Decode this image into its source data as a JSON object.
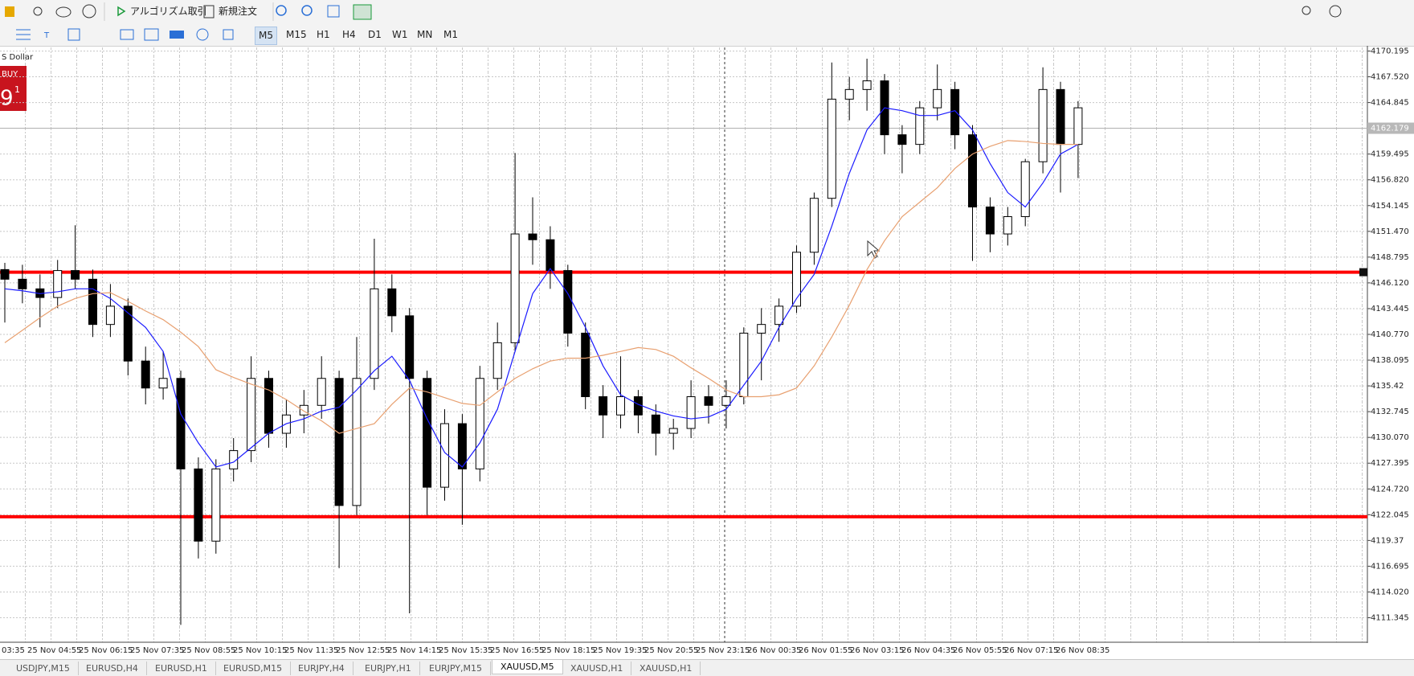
{
  "toolbar": {
    "buttons": [
      "アルゴリズム取引",
      "新規注文"
    ],
    "timeframes": [
      "M5",
      "M15",
      "H1",
      "H4",
      "D1",
      "W1",
      "MN",
      "M1"
    ],
    "active_timeframe": "M5"
  },
  "symbol_label": "S Dollar",
  "trade_panel": {
    "label": "BUY",
    "price": "9",
    "superscript": "1"
  },
  "chart_data": {
    "type": "candlestick",
    "x_labels": [
      "03:35",
      "25 Nov 04:55",
      "25 Nov 06:15",
      "25 Nov 07:35",
      "25 Nov 08:55",
      "25 Nov 10:15",
      "25 Nov 11:35",
      "25 Nov 12:55",
      "25 Nov 14:15",
      "25 Nov 15:35",
      "25 Nov 16:55",
      "25 Nov 18:15",
      "25 Nov 19:35",
      "25 Nov 20:55",
      "25 Nov 23:15",
      "26 Nov 00:35",
      "26 Nov 01:55",
      "26 Nov 03:15",
      "26 Nov 04:35",
      "26 Nov 05:55",
      "26 Nov 07:15",
      "26 Nov 08:35"
    ],
    "ylim": [
      4108.8,
      4170.57
    ],
    "yticks": [
      4170.195,
      {
        "value": 4167.52,
        "label": "4167.520"
      },
      4164.845,
      4159.495,
      {
        "value": 4156.82,
        "label": "4156.820"
      },
      4154.145,
      {
        "value": 4151.47,
        "label": "4151.470"
      },
      4148.795,
      {
        "value": 4146.12,
        "label": "4146.120"
      },
      4143.445,
      {
        "value": 4140.77,
        "label": "4140.770"
      },
      4138.095,
      4135.42,
      4132.745,
      {
        "value": 4130.07,
        "label": "4130.070"
      },
      4127.395,
      {
        "value": 4124.72,
        "label": "4124.720"
      },
      4122.045,
      4119.37,
      4116.695,
      {
        "value": 4114.02,
        "label": "4114.020"
      },
      4111.345
    ],
    "grid": true,
    "open": [
      4147.5,
      4146.5,
      4145.5,
      4144.6,
      4147.4,
      4146.5,
      4141.8,
      4143.7,
      4138.0,
      4135.2,
      4136.2,
      4126.8,
      4119.3,
      4126.8,
      4128.7,
      4136.2,
      4130.5,
      4132.4,
      4133.4,
      4136.2,
      4123.0,
      4136.2,
      4145.5,
      4142.7,
      4136.2,
      4124.9,
      4131.5,
      4126.8,
      4136.2,
      4139.9,
      4151.2,
      4150.6,
      4147.4,
      4140.9,
      4134.3,
      4132.4,
      4134.3,
      4132.4,
      4130.5,
      4131.0,
      4134.3,
      4133.4,
      4134.3,
      4140.9,
      4141.8,
      4143.7,
      4149.3,
      4154.9,
      4165.2,
      4166.2,
      4167.1,
      4161.5,
      4160.5,
      4164.3,
      4166.2,
      4161.5,
      4154.0,
      4151.2,
      4153.0,
      4158.7,
      4166.2,
      4160.5
    ],
    "high": [
      4148.2,
      4148.0,
      4147.0,
      4148.5,
      4152.1,
      4147.5,
      4146.0,
      4144.5,
      4139.5,
      4139.0,
      4137.0,
      4128.0,
      4127.8,
      4130.0,
      4138.5,
      4137.0,
      4134.0,
      4135.0,
      4138.5,
      4137.0,
      4140.5,
      4150.7,
      4147.0,
      4143.5,
      4137.0,
      4133.0,
      4132.5,
      4137.5,
      4142.0,
      4159.6,
      4155.0,
      4152.0,
      4148.0,
      4142.0,
      4135.5,
      4138.5,
      4135.0,
      4133.5,
      4132.0,
      4136.0,
      4135.5,
      4136.0,
      4141.5,
      4143.5,
      4144.5,
      4150.0,
      4155.5,
      4169.0,
      4167.5,
      4169.4,
      4167.8,
      4162.5,
      4165.0,
      4168.8,
      4167.0,
      4162.5,
      4155.0,
      4154.0,
      4159.0,
      4168.5,
      4167.0,
      4165.0
    ],
    "low": [
      4142.0,
      4144.0,
      4141.5,
      4143.5,
      4145.5,
      4140.5,
      4140.5,
      4136.5,
      4133.5,
      4134.0,
      4110.6,
      4117.5,
      4118.0,
      4125.5,
      4127.5,
      4129.0,
      4129.0,
      4130.5,
      4132.0,
      4116.5,
      4122.0,
      4135.0,
      4141.0,
      4111.8,
      4122.0,
      4123.5,
      4121.0,
      4125.5,
      4135.0,
      4139.0,
      4148.0,
      4145.5,
      4139.5,
      4133.0,
      4130.0,
      4131.0,
      4130.5,
      4128.2,
      4128.8,
      4130.0,
      4131.5,
      4131.0,
      4133.5,
      4136.0,
      4140.0,
      4143.0,
      4148.0,
      4154.0,
      4163.0,
      4164.0,
      4159.5,
      4157.5,
      4159.5,
      4163.0,
      4160.0,
      4148.4,
      4149.3,
      4150.0,
      4152.0,
      4157.5,
      4155.5,
      4157.0
    ],
    "close": [
      4146.5,
      4145.5,
      4144.6,
      4147.4,
      4146.5,
      4141.8,
      4143.7,
      4138.0,
      4135.2,
      4136.2,
      4126.8,
      4119.3,
      4126.8,
      4128.7,
      4136.2,
      4130.5,
      4132.4,
      4133.4,
      4136.2,
      4123.0,
      4136.2,
      4145.5,
      4142.7,
      4136.2,
      4124.9,
      4131.5,
      4126.8,
      4136.2,
      4139.9,
      4151.2,
      4150.6,
      4147.4,
      4140.9,
      4134.3,
      4132.4,
      4134.3,
      4132.4,
      4130.5,
      4131.0,
      4134.3,
      4133.4,
      4134.3,
      4140.9,
      4141.8,
      4143.7,
      4149.3,
      4154.9,
      4165.2,
      4166.2,
      4167.1,
      4161.5,
      4160.5,
      4164.3,
      4166.2,
      4161.5,
      4154.0,
      4151.2,
      4153.0,
      4158.7,
      4166.2,
      4160.5,
      4164.3
    ],
    "lines": [
      {
        "color": "#1a1aff",
        "values": [
          4145.5,
          4145.3,
          4145.0,
          4145.2,
          4145.5,
          4145.5,
          4144.5,
          4143.0,
          4141.5,
          4139.0,
          4132.5,
          4129.5,
          4127.0,
          4127.5,
          4129.0,
          4130.5,
          4131.5,
          4132.0,
          4132.8,
          4133.2,
          4135.0,
          4137.0,
          4138.5,
          4136.0,
          4132.0,
          4128.5,
          4127.0,
          4129.5,
          4133.0,
          4139.0,
          4145.0,
          4147.6,
          4145.0,
          4141.5,
          4137.5,
          4134.5,
          4133.5,
          4132.8,
          4132.3,
          4132.0,
          4132.2,
          4133.0,
          4135.5,
          4138.0,
          4141.5,
          4144.5,
          4147.0,
          4152.0,
          4157.5,
          4162.0,
          4164.3,
          4164.0,
          4163.5,
          4163.5,
          4164.0,
          4162.0,
          4158.5,
          4155.5,
          4154.0,
          4156.5,
          4159.5,
          4160.5
        ]
      },
      {
        "color": "#e8a070",
        "values": [
          4139.9,
          4141.2,
          4142.5,
          4143.7,
          4144.5,
          4145.0,
          4145.1,
          4144.2,
          4143.2,
          4142.3,
          4141.0,
          4139.5,
          4137.1,
          4136.3,
          4135.6,
          4135.0,
          4134.0,
          4132.8,
          4131.8,
          4130.5,
          4131.0,
          4131.5,
          4133.5,
          4135.2,
          4134.8,
          4134.2,
          4133.6,
          4133.4,
          4134.8,
          4136.2,
          4137.2,
          4138.0,
          4138.3,
          4138.3,
          4138.6,
          4139.0,
          4139.4,
          4139.2,
          4138.5,
          4137.3,
          4136.2,
          4135.0,
          4134.3,
          4134.3,
          4134.5,
          4135.2,
          4137.5,
          4140.5,
          4143.8,
          4147.5,
          4150.5,
          4153.0,
          4154.5,
          4156.0,
          4158.0,
          4159.5,
          4160.3,
          4160.9,
          4160.8,
          4160.6,
          4160.5,
          4160.5
        ]
      }
    ],
    "levels": [
      {
        "value": 4147.23,
        "color": "#ff0000"
      },
      {
        "value": 4121.83,
        "color": "#ff0000"
      }
    ],
    "bid": 4162.179
  },
  "tabs": [
    "USDJPY,M15",
    "EURUSD,H4",
    "EURUSD,H1",
    "EURUSD,M15",
    "EURJPY,H4",
    "EURJPY,H1",
    "EURJPY,M15",
    "XAUUSD,M5",
    "XAUUSD,H1",
    "XAUUSD,H1"
  ],
  "active_tab": 7
}
